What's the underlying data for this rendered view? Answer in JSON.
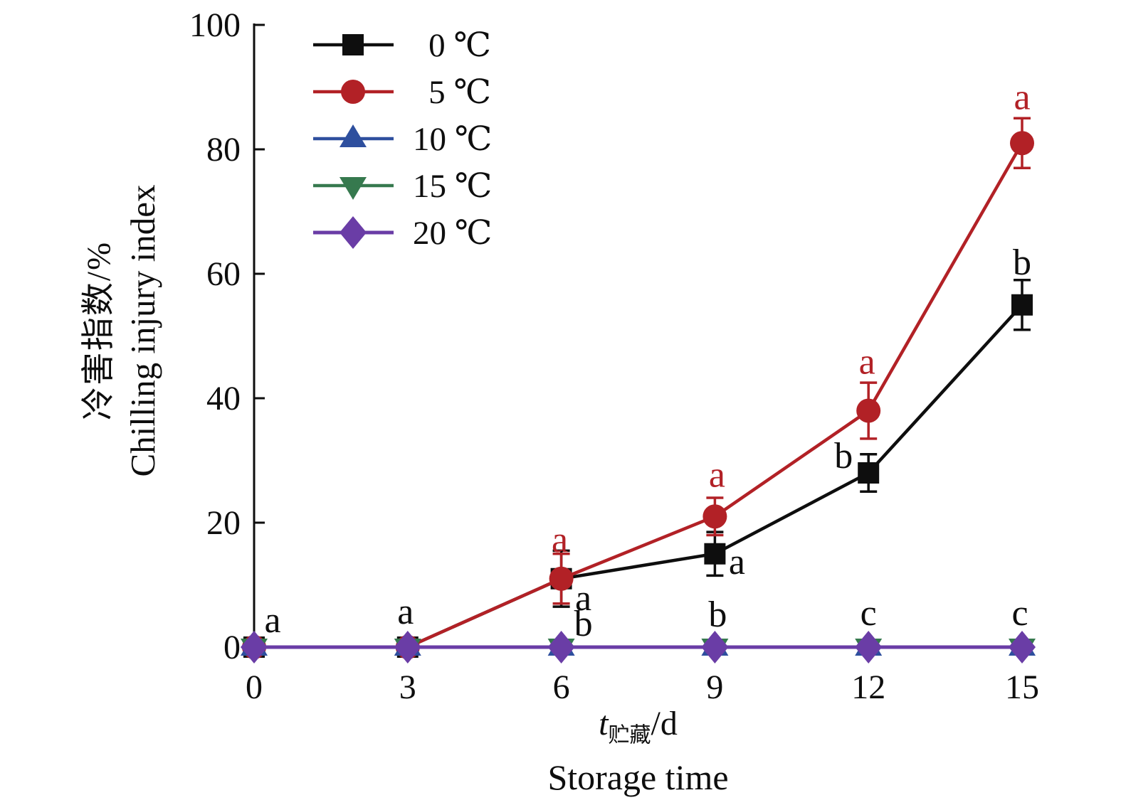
{
  "figure": {
    "background": "#ffffff",
    "axis_color": "#0e0e0e"
  },
  "chart_data": {
    "type": "line",
    "title": "",
    "x": [
      0,
      3,
      6,
      9,
      12,
      15
    ],
    "xticks": [
      0,
      3,
      6,
      9,
      12,
      15
    ],
    "yticks": [
      0,
      20,
      40,
      60,
      80,
      100
    ],
    "xlim": [
      0,
      15
    ],
    "ylim": [
      0,
      100
    ],
    "grid": false,
    "legend_position": "upper-left-inside",
    "xlabel": {
      "symbol": "t",
      "subscript": "贮藏",
      "unit": "/d",
      "en": "Storage time"
    },
    "ylabel": {
      "cn": "冷害指数/%",
      "en": "Chilling injury index"
    },
    "series": [
      {
        "name": "0 ℃",
        "color": "#0e0e0e",
        "marker": "square",
        "values": [
          0,
          0,
          11,
          15,
          28,
          55
        ],
        "errors": [
          0,
          0,
          4.5,
          3.5,
          3,
          4
        ],
        "point_labels": [
          null,
          null,
          {
            "text": "a",
            "dx": 31,
            "dy": 28
          },
          {
            "text": "a",
            "dx": 31,
            "dy": 12
          },
          {
            "text": "b",
            "dx": -35,
            "dy": -23
          },
          {
            "text": "b",
            "dx": 0,
            "dy": -59
          }
        ]
      },
      {
        "name": "5 ℃",
        "color": "#b22126",
        "marker": "circle",
        "values": [
          0,
          0,
          11,
          21,
          38,
          81
        ],
        "errors": [
          0,
          0,
          4,
          3,
          4.5,
          4
        ],
        "point_labels": [
          null,
          null,
          {
            "text": "a",
            "dx": -2,
            "dy": -54
          },
          {
            "text": "a",
            "dx": 3,
            "dy": -58
          },
          {
            "text": "a",
            "dx": -2,
            "dy": -68
          },
          {
            "text": "a",
            "dx": 0,
            "dy": -64
          }
        ]
      },
      {
        "name": "10 ℃",
        "color": "#2e4f9e",
        "marker": "triangle-up",
        "values": [
          0,
          0,
          0,
          0,
          0,
          0
        ],
        "errors": [
          0,
          0,
          0,
          0,
          0,
          0
        ],
        "point_labels": [
          null,
          null,
          null,
          null,
          null,
          null
        ]
      },
      {
        "name": "15 ℃",
        "color": "#36794e",
        "marker": "triangle-down",
        "values": [
          0,
          0,
          0,
          0,
          0,
          0
        ],
        "errors": [
          0,
          0,
          0,
          0,
          0,
          0
        ],
        "point_labels": [
          null,
          null,
          null,
          null,
          null,
          null
        ]
      },
      {
        "name": "20 ℃",
        "color": "#6a3da6",
        "marker": "diamond",
        "values": [
          0,
          0,
          0,
          0,
          0,
          0
        ],
        "errors": [
          0,
          0,
          0,
          0,
          0,
          0
        ],
        "label_color": "#0e0e0e",
        "point_labels": [
          {
            "text": "a",
            "dx": 26,
            "dy": -37
          },
          {
            "text": "a",
            "dx": -3,
            "dy": -49
          },
          {
            "text": "b",
            "dx": 31,
            "dy": -32
          },
          {
            "text": "b",
            "dx": 4,
            "dy": -45
          },
          {
            "text": "c",
            "dx": 0,
            "dy": -47
          },
          {
            "text": "c",
            "dx": -3,
            "dy": -47
          }
        ]
      }
    ]
  }
}
